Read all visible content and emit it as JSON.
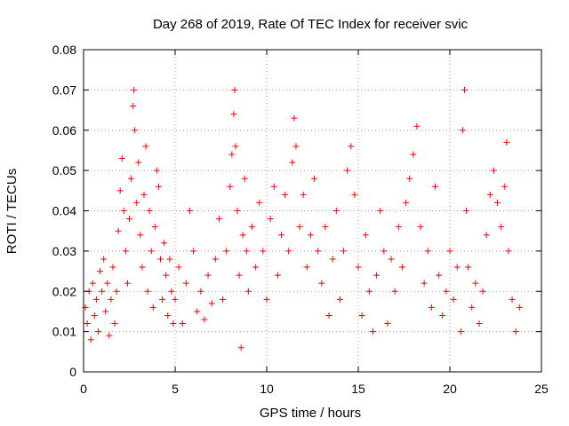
{
  "chart_data": {
    "type": "scatter",
    "title": "Day 268 of 2019, Rate Of TEC Index for receiver svic",
    "xlabel": "GPS time / hours",
    "ylabel": "ROTI / TECUs",
    "xlim": [
      0,
      25
    ],
    "ylim": [
      0,
      0.08
    ],
    "x_ticks": [
      0,
      5,
      10,
      15,
      20,
      25
    ],
    "x_tick_labels": [
      "0",
      "5",
      "10",
      "15",
      "20",
      "25"
    ],
    "y_ticks": [
      0,
      0.01,
      0.02,
      0.03,
      0.04,
      0.05,
      0.06,
      0.07,
      0.08
    ],
    "y_tick_labels": [
      "0",
      "0.01",
      "0.02",
      "0.03",
      "0.04",
      "0.05",
      "0.06",
      "0.07",
      "0.08"
    ],
    "grid": true,
    "marker": "+",
    "marker_color": "#ff0000",
    "series": [
      {
        "name": "ROTI",
        "points": [
          [
            0.1,
            0.016
          ],
          [
            0.2,
            0.012
          ],
          [
            0.3,
            0.02
          ],
          [
            0.4,
            0.008
          ],
          [
            0.5,
            0.022
          ],
          [
            0.6,
            0.014
          ],
          [
            0.7,
            0.018
          ],
          [
            0.8,
            0.01
          ],
          [
            0.9,
            0.025
          ],
          [
            1.0,
            0.02
          ],
          [
            1.1,
            0.028
          ],
          [
            1.2,
            0.015
          ],
          [
            1.3,
            0.022
          ],
          [
            1.4,
            0.009
          ],
          [
            1.5,
            0.018
          ],
          [
            1.6,
            0.026
          ],
          [
            1.7,
            0.012
          ],
          [
            1.8,
            0.02
          ],
          [
            1.9,
            0.035
          ],
          [
            2.0,
            0.045
          ],
          [
            2.1,
            0.053
          ],
          [
            2.2,
            0.04
          ],
          [
            2.3,
            0.03
          ],
          [
            2.4,
            0.022
          ],
          [
            2.5,
            0.038
          ],
          [
            2.6,
            0.048
          ],
          [
            2.7,
            0.066
          ],
          [
            2.75,
            0.07
          ],
          [
            2.8,
            0.06
          ],
          [
            2.9,
            0.042
          ],
          [
            3.0,
            0.052
          ],
          [
            3.1,
            0.034
          ],
          [
            3.2,
            0.026
          ],
          [
            3.3,
            0.044
          ],
          [
            3.4,
            0.056
          ],
          [
            3.5,
            0.02
          ],
          [
            3.6,
            0.04
          ],
          [
            3.7,
            0.03
          ],
          [
            3.8,
            0.016
          ],
          [
            3.9,
            0.036
          ],
          [
            4.0,
            0.05
          ],
          [
            4.1,
            0.046
          ],
          [
            4.2,
            0.028
          ],
          [
            4.3,
            0.018
          ],
          [
            4.4,
            0.032
          ],
          [
            4.5,
            0.024
          ],
          [
            4.6,
            0.014
          ],
          [
            4.7,
            0.028
          ],
          [
            4.8,
            0.02
          ],
          [
            4.9,
            0.012
          ],
          [
            5.0,
            0.018
          ],
          [
            5.2,
            0.026
          ],
          [
            5.4,
            0.012
          ],
          [
            5.6,
            0.022
          ],
          [
            5.8,
            0.04
          ],
          [
            6.0,
            0.03
          ],
          [
            6.2,
            0.015
          ],
          [
            6.4,
            0.02
          ],
          [
            6.6,
            0.013
          ],
          [
            6.8,
            0.024
          ],
          [
            7.0,
            0.017
          ],
          [
            7.2,
            0.028
          ],
          [
            7.4,
            0.038
          ],
          [
            7.6,
            0.018
          ],
          [
            7.8,
            0.03
          ],
          [
            8.0,
            0.046
          ],
          [
            8.1,
            0.054
          ],
          [
            8.2,
            0.064
          ],
          [
            8.25,
            0.07
          ],
          [
            8.3,
            0.056
          ],
          [
            8.4,
            0.04
          ],
          [
            8.5,
            0.024
          ],
          [
            8.6,
            0.006
          ],
          [
            8.7,
            0.034
          ],
          [
            8.8,
            0.048
          ],
          [
            8.9,
            0.03
          ],
          [
            9.0,
            0.02
          ],
          [
            9.2,
            0.036
          ],
          [
            9.4,
            0.026
          ],
          [
            9.6,
            0.042
          ],
          [
            9.8,
            0.03
          ],
          [
            10.0,
            0.018
          ],
          [
            10.2,
            0.038
          ],
          [
            10.4,
            0.046
          ],
          [
            10.6,
            0.024
          ],
          [
            10.8,
            0.034
          ],
          [
            11.0,
            0.044
          ],
          [
            11.2,
            0.03
          ],
          [
            11.4,
            0.052
          ],
          [
            11.5,
            0.063
          ],
          [
            11.6,
            0.056
          ],
          [
            11.8,
            0.036
          ],
          [
            12.0,
            0.044
          ],
          [
            12.2,
            0.026
          ],
          [
            12.4,
            0.034
          ],
          [
            12.6,
            0.048
          ],
          [
            12.8,
            0.03
          ],
          [
            13.0,
            0.022
          ],
          [
            13.2,
            0.036
          ],
          [
            13.4,
            0.014
          ],
          [
            13.6,
            0.028
          ],
          [
            13.8,
            0.04
          ],
          [
            14.0,
            0.018
          ],
          [
            14.2,
            0.03
          ],
          [
            14.4,
            0.05
          ],
          [
            14.6,
            0.056
          ],
          [
            14.8,
            0.044
          ],
          [
            15.0,
            0.026
          ],
          [
            15.2,
            0.014
          ],
          [
            15.4,
            0.034
          ],
          [
            15.6,
            0.02
          ],
          [
            15.8,
            0.01
          ],
          [
            16.0,
            0.024
          ],
          [
            16.2,
            0.04
          ],
          [
            16.4,
            0.03
          ],
          [
            16.6,
            0.012
          ],
          [
            16.8,
            0.028
          ],
          [
            17.0,
            0.02
          ],
          [
            17.2,
            0.036
          ],
          [
            17.4,
            0.026
          ],
          [
            17.6,
            0.042
          ],
          [
            17.8,
            0.048
          ],
          [
            18.0,
            0.054
          ],
          [
            18.2,
            0.061
          ],
          [
            18.4,
            0.036
          ],
          [
            18.6,
            0.022
          ],
          [
            18.8,
            0.03
          ],
          [
            19.0,
            0.016
          ],
          [
            19.2,
            0.046
          ],
          [
            19.4,
            0.024
          ],
          [
            19.6,
            0.014
          ],
          [
            19.8,
            0.02
          ],
          [
            20.0,
            0.03
          ],
          [
            20.2,
            0.018
          ],
          [
            20.4,
            0.026
          ],
          [
            20.6,
            0.01
          ],
          [
            20.7,
            0.06
          ],
          [
            20.8,
            0.07
          ],
          [
            20.9,
            0.04
          ],
          [
            21.0,
            0.026
          ],
          [
            21.2,
            0.016
          ],
          [
            21.4,
            0.022
          ],
          [
            21.6,
            0.012
          ],
          [
            21.8,
            0.02
          ],
          [
            22.0,
            0.034
          ],
          [
            22.2,
            0.044
          ],
          [
            22.4,
            0.05
          ],
          [
            22.6,
            0.042
          ],
          [
            22.8,
            0.036
          ],
          [
            23.0,
            0.046
          ],
          [
            23.1,
            0.057
          ],
          [
            23.2,
            0.03
          ],
          [
            23.4,
            0.018
          ],
          [
            23.6,
            0.01
          ],
          [
            23.8,
            0.016
          ]
        ]
      }
    ]
  }
}
